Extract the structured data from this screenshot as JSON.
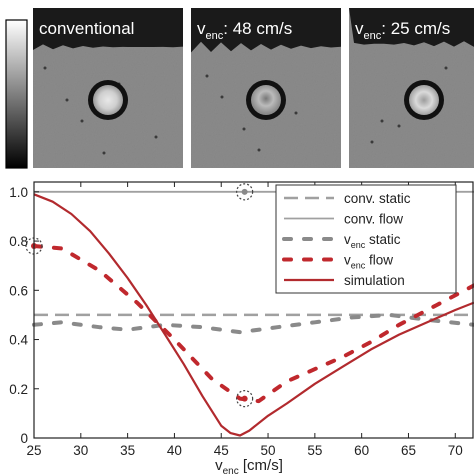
{
  "panels": [
    {
      "label": "conventional",
      "sub": ""
    },
    {
      "label": "v",
      "sub": "enc",
      "suffix": ": 48 cm/s"
    },
    {
      "label": "v",
      "sub": "enc",
      "suffix": ": 25 cm/s"
    }
  ],
  "chart_data": {
    "type": "line",
    "title": "",
    "xlabel_main": "v",
    "xlabel_sub": "enc",
    "xlabel_suffix": " [cm/s]",
    "ylabel": "",
    "xlim": [
      25,
      72
    ],
    "ylim": [
      0,
      1.04
    ],
    "xticks": [
      25,
      30,
      35,
      40,
      45,
      50,
      55,
      60,
      65,
      70
    ],
    "yticks": [
      0,
      0.2,
      0.4,
      0.6,
      0.8,
      1.0
    ],
    "ytick_labels": [
      "0",
      "0.2",
      "0.4",
      "0.6",
      "0.8",
      "1.0"
    ],
    "legend_position": "top-right",
    "series": [
      {
        "name": "conv. static",
        "name_main": "conv. static",
        "name_sub": "",
        "style": "dashed",
        "color": "#a0a0a0",
        "x": [
          25,
          72
        ],
        "y": [
          0.5,
          0.5
        ]
      },
      {
        "name": "conv. flow",
        "name_main": "conv. flow",
        "name_sub": "",
        "style": "solid",
        "color": "#a0a0a0",
        "x": [
          25,
          72
        ],
        "y": [
          1.0,
          1.0
        ]
      },
      {
        "name": "venc static",
        "name_main": "v",
        "name_sub": "enc",
        "name_suffix": " static",
        "style": "dotted",
        "color": "#8a8a8a",
        "x": [
          25,
          28,
          32,
          35,
          39,
          43,
          47,
          51,
          55,
          59,
          63,
          67,
          72
        ],
        "y": [
          0.46,
          0.47,
          0.45,
          0.44,
          0.46,
          0.45,
          0.43,
          0.45,
          0.47,
          0.49,
          0.5,
          0.48,
          0.46
        ]
      },
      {
        "name": "venc flow",
        "name_main": "v",
        "name_sub": "enc",
        "name_suffix": " flow",
        "style": "dotted",
        "color": "#c0282d",
        "x": [
          25,
          28,
          32,
          36,
          40,
          44,
          47,
          49,
          52,
          55,
          58,
          61,
          64,
          68,
          72
        ],
        "y": [
          0.78,
          0.77,
          0.68,
          0.55,
          0.4,
          0.24,
          0.16,
          0.15,
          0.23,
          0.28,
          0.33,
          0.39,
          0.46,
          0.54,
          0.62
        ]
      },
      {
        "name": "simulation",
        "name_main": "simulation",
        "name_sub": "",
        "style": "solid",
        "color": "#b22a2e",
        "x": [
          25,
          27,
          29,
          31,
          33,
          35,
          37,
          39,
          41,
          43,
          45,
          46,
          47,
          48,
          50,
          52,
          55,
          58,
          61,
          64,
          67,
          70,
          72
        ],
        "y": [
          0.99,
          0.96,
          0.91,
          0.84,
          0.75,
          0.65,
          0.54,
          0.42,
          0.3,
          0.17,
          0.05,
          0.02,
          0.01,
          0.03,
          0.09,
          0.14,
          0.22,
          0.29,
          0.36,
          0.42,
          0.47,
          0.52,
          0.55
        ]
      }
    ],
    "highlights": [
      {
        "x": 25,
        "y": 0.78
      },
      {
        "x": 47.5,
        "y": 1.0
      },
      {
        "x": 47.5,
        "y": 0.16
      }
    ]
  }
}
